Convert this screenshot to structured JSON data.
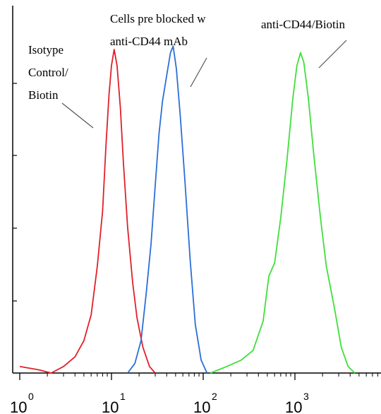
{
  "chart_data": {
    "type": "line",
    "title": "",
    "xlabel": "",
    "ylabel": "",
    "xscale": "log",
    "xlim": [
      1,
      8000
    ],
    "ylim": [
      0,
      1.05
    ],
    "grid": false,
    "legend": "none",
    "x_ticks": [
      {
        "base": "10",
        "exp": "0",
        "value": 1
      },
      {
        "base": "10",
        "exp": "1",
        "value": 10
      },
      {
        "base": "10",
        "exp": "2",
        "value": 100
      },
      {
        "base": "10",
        "exp": "3",
        "value": 1000
      }
    ],
    "series": [
      {
        "color": "#e0202a",
        "points": [
          [
            1,
            0.02
          ],
          [
            1.6,
            0.01
          ],
          [
            2.2,
            0.0
          ],
          [
            3,
            0.02
          ],
          [
            4,
            0.05
          ],
          [
            5,
            0.1
          ],
          [
            6,
            0.18
          ],
          [
            7,
            0.33
          ],
          [
            8,
            0.5
          ],
          [
            8.7,
            0.7
          ],
          [
            9.4,
            0.86
          ],
          [
            10,
            0.95
          ],
          [
            10.7,
            1.0
          ],
          [
            11.5,
            0.95
          ],
          [
            12.5,
            0.82
          ],
          [
            13.5,
            0.65
          ],
          [
            15,
            0.45
          ],
          [
            17,
            0.28
          ],
          [
            19,
            0.17
          ],
          [
            22,
            0.08
          ],
          [
            26,
            0.02
          ],
          [
            30,
            0.0
          ]
        ]
      },
      {
        "color": "#2a6fd6",
        "points": [
          [
            15,
            0.0
          ],
          [
            18,
            0.03
          ],
          [
            21,
            0.1
          ],
          [
            24,
            0.25
          ],
          [
            27,
            0.4
          ],
          [
            30,
            0.58
          ],
          [
            33,
            0.74
          ],
          [
            36,
            0.84
          ],
          [
            40,
            0.92
          ],
          [
            44,
            0.99
          ],
          [
            47,
            1.01
          ],
          [
            51,
            0.94
          ],
          [
            56,
            0.8
          ],
          [
            63,
            0.6
          ],
          [
            72,
            0.35
          ],
          [
            82,
            0.15
          ],
          [
            95,
            0.04
          ],
          [
            110,
            0.0
          ]
        ]
      },
      {
        "color": "#3ee03a",
        "points": [
          [
            120,
            0.0
          ],
          [
            180,
            0.02
          ],
          [
            260,
            0.04
          ],
          [
            350,
            0.07
          ],
          [
            450,
            0.16
          ],
          [
            520,
            0.3
          ],
          [
            600,
            0.34
          ],
          [
            700,
            0.48
          ],
          [
            820,
            0.66
          ],
          [
            950,
            0.85
          ],
          [
            1050,
            0.95
          ],
          [
            1150,
            0.99
          ],
          [
            1250,
            0.96
          ],
          [
            1400,
            0.85
          ],
          [
            1600,
            0.68
          ],
          [
            1900,
            0.48
          ],
          [
            2200,
            0.33
          ],
          [
            2700,
            0.2
          ],
          [
            3200,
            0.08
          ],
          [
            3800,
            0.02
          ],
          [
            4500,
            0.0
          ]
        ]
      }
    ],
    "annotations": [
      {
        "lines": [
          "Isotype",
          "Control/",
          "Biotin"
        ]
      },
      {
        "lines": [
          "Cells pre blocked w",
          "anti-CD44 mAb"
        ]
      },
      {
        "lines": [
          "anti-CD44/Biotin"
        ]
      }
    ]
  }
}
